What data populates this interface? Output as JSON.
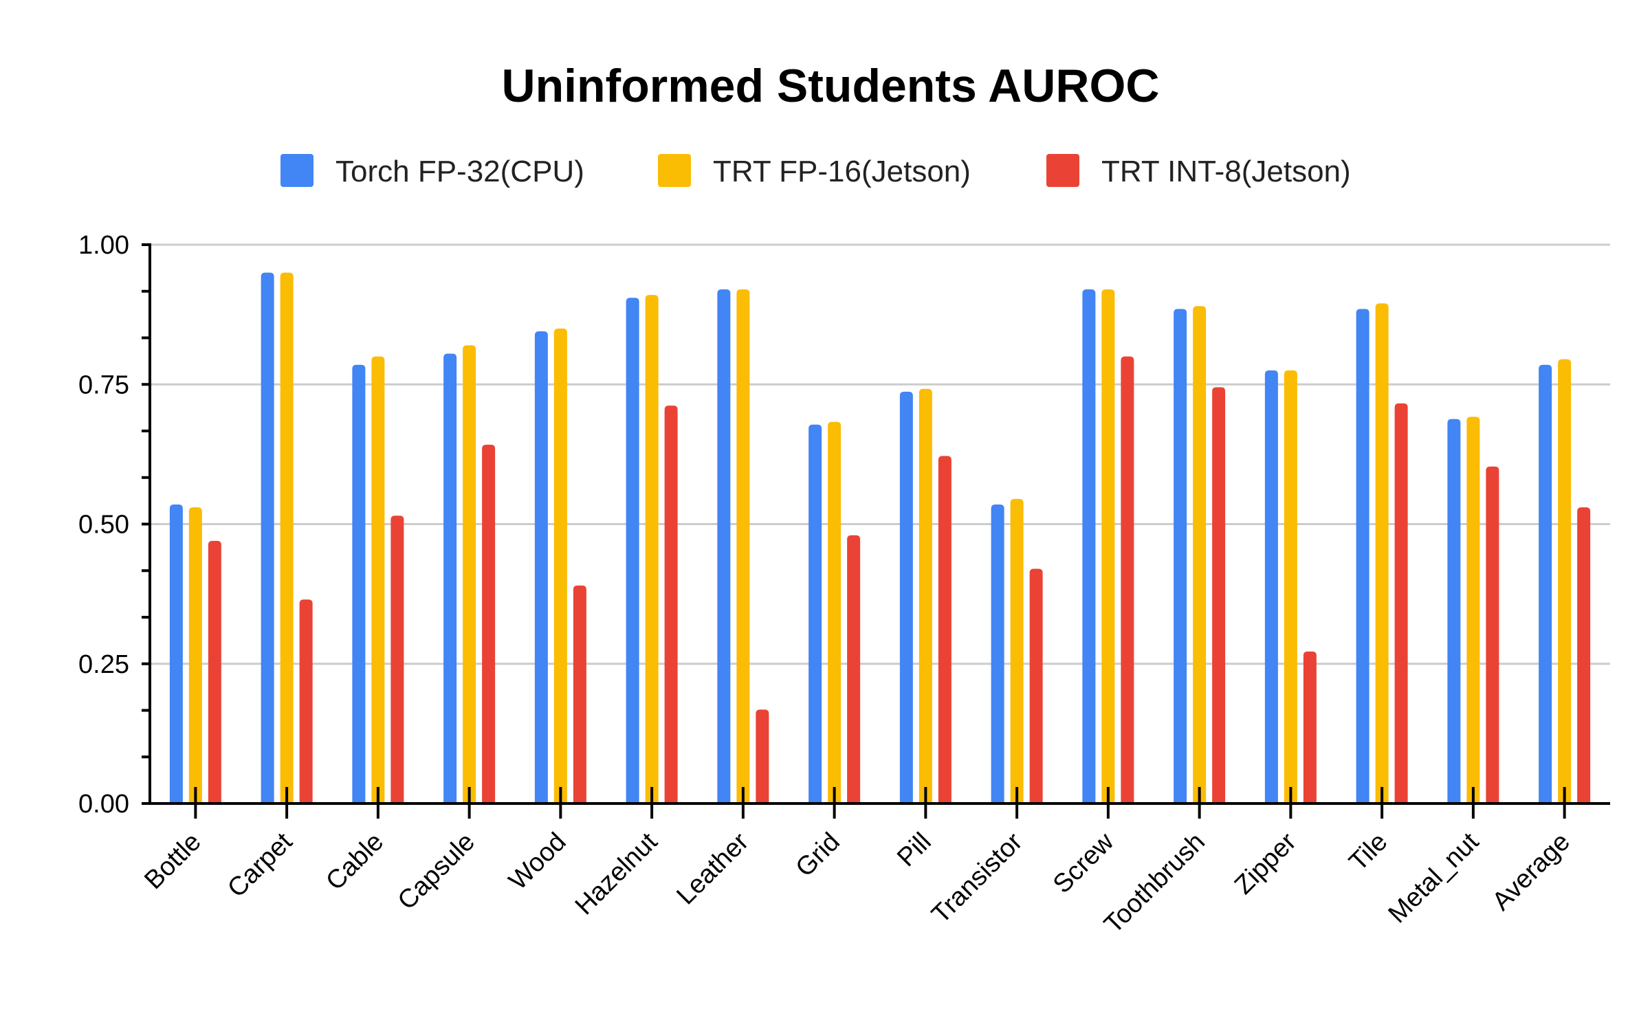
{
  "chart_data": {
    "type": "bar",
    "title": "Uninformed Students AUROC",
    "xlabel": "",
    "ylabel": "",
    "ylim": [
      0,
      1
    ],
    "yticks": [
      "0.00",
      "0.25",
      "0.50",
      "0.75",
      "1.00"
    ],
    "grid": true,
    "legend_position": "top",
    "categories": [
      "Bottle",
      "Carpet",
      "Cable",
      "Capsule",
      "Wood",
      "Hazelnut",
      "Leather",
      "Grid",
      "Pill",
      "Transistor",
      "Screw",
      "Toothbrush",
      "Zipper",
      "Tile",
      "Metal_nut",
      "Average"
    ],
    "series": [
      {
        "name": "Torch FP-32(CPU)",
        "color": "#4285F4",
        "values": [
          0.535,
          0.95,
          0.785,
          0.805,
          0.845,
          0.905,
          0.92,
          0.678,
          0.737,
          0.535,
          0.92,
          0.885,
          0.775,
          0.885,
          0.688,
          0.785
        ]
      },
      {
        "name": "TRT FP-16(Jetson)",
        "color": "#FBBC04",
        "values": [
          0.53,
          0.95,
          0.8,
          0.82,
          0.85,
          0.91,
          0.92,
          0.683,
          0.742,
          0.545,
          0.92,
          0.89,
          0.775,
          0.895,
          0.692,
          0.795
        ]
      },
      {
        "name": "TRT INT-8(Jetson)",
        "color": "#EA4335",
        "values": [
          0.47,
          0.365,
          0.515,
          0.642,
          0.39,
          0.712,
          0.168,
          0.48,
          0.622,
          0.42,
          0.8,
          0.745,
          0.272,
          0.716,
          0.603,
          0.53
        ]
      }
    ]
  }
}
